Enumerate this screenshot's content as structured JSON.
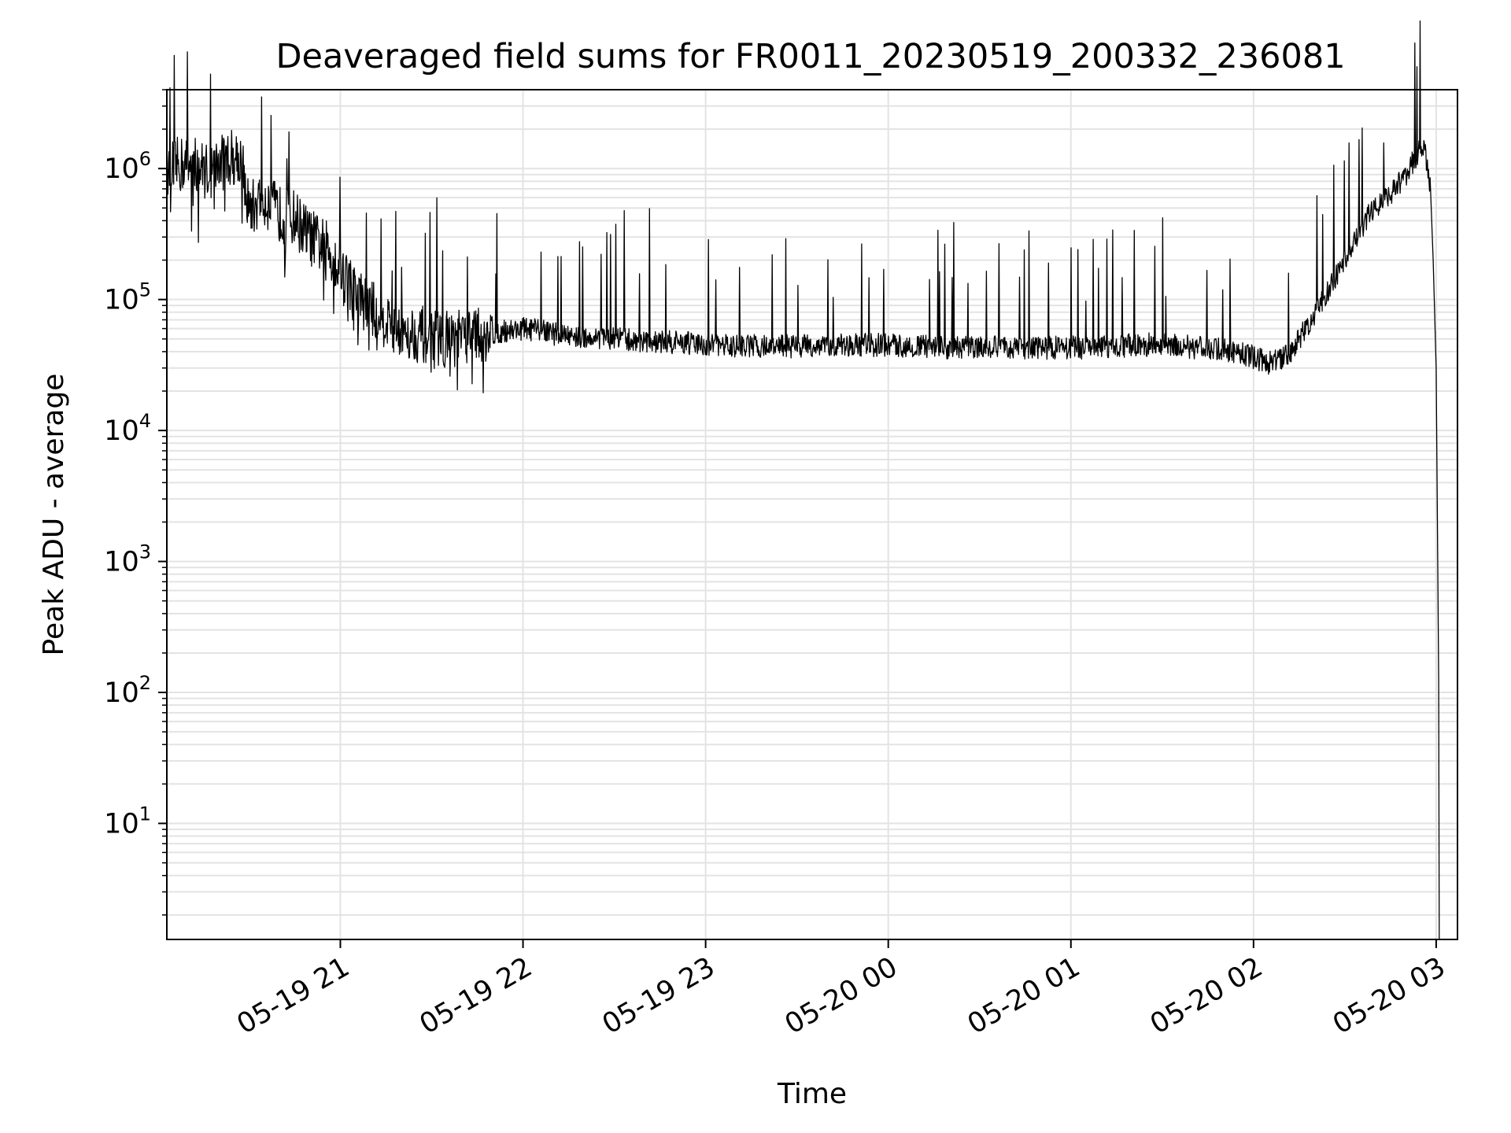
{
  "chart_data": {
    "type": "line",
    "title": "Deaveraged field sums for FR0011_20230519_200332_236081",
    "xlabel": "Time",
    "ylabel": "Peak ADU - average",
    "y_scale": "log",
    "grid": true,
    "line_color": "#000000",
    "grid_color": "#e3e3e3",
    "xlim": [
      "05-19 20:03",
      "05-20 03:07"
    ],
    "ylim": [
      1.3,
      4000000
    ],
    "x_ticks": [
      "05-19 21",
      "05-19 22",
      "05-19 23",
      "05-20 00",
      "05-20 01",
      "05-20 02",
      "05-20 03"
    ],
    "y_ticks": [
      {
        "base": "10",
        "exp": "1",
        "value": 10
      },
      {
        "base": "10",
        "exp": "2",
        "value": 100
      },
      {
        "base": "10",
        "exp": "3",
        "value": 1000
      },
      {
        "base": "10",
        "exp": "4",
        "value": 10000
      },
      {
        "base": "10",
        "exp": "5",
        "value": 100000
      },
      {
        "base": "10",
        "exp": "6",
        "value": 1000000
      }
    ],
    "series": [
      {
        "points": [
          [
            "05-19 20:03",
            1000000
          ],
          [
            "05-19 20:10",
            1100000
          ],
          [
            "05-19 20:17",
            950000
          ],
          [
            "05-19 20:23",
            1200000
          ],
          [
            "05-19 20:27",
            1300000
          ],
          [
            "05-19 20:30",
            480000
          ],
          [
            "05-19 20:35",
            600000
          ],
          [
            "05-19 20:40",
            450000
          ],
          [
            "05-19 20:45",
            420000
          ],
          [
            "05-19 20:50",
            300000
          ],
          [
            "05-19 20:55",
            250000
          ],
          [
            "05-19 21:00",
            180000
          ],
          [
            "05-19 21:05",
            110000
          ],
          [
            "05-19 21:10",
            85000
          ],
          [
            "05-19 21:15",
            70000
          ],
          [
            "05-19 21:20",
            60000
          ],
          [
            "05-19 21:25",
            55000
          ],
          [
            "05-19 21:30",
            52000
          ],
          [
            "05-19 21:35",
            50000
          ],
          [
            "05-19 21:40",
            50000
          ],
          [
            "05-19 21:45",
            52000
          ],
          [
            "05-19 21:50",
            55000
          ],
          [
            "05-19 21:55",
            58000
          ],
          [
            "05-19 22:00",
            60000
          ],
          [
            "05-19 22:10",
            55000
          ],
          [
            "05-19 22:20",
            52000
          ],
          [
            "05-19 22:30",
            50000
          ],
          [
            "05-19 22:40",
            48000
          ],
          [
            "05-19 22:50",
            47000
          ],
          [
            "05-19 23:00",
            45000
          ],
          [
            "05-19 23:15",
            44000
          ],
          [
            "05-19 23:30",
            44000
          ],
          [
            "05-19 23:45",
            45000
          ],
          [
            "05-20 00:00",
            45000
          ],
          [
            "05-20 00:15",
            43000
          ],
          [
            "05-20 00:30",
            43000
          ],
          [
            "05-20 00:45",
            43000
          ],
          [
            "05-20 01:00",
            43000
          ],
          [
            "05-20 01:15",
            44000
          ],
          [
            "05-20 01:30",
            46000
          ],
          [
            "05-20 01:45",
            42000
          ],
          [
            "05-20 01:55",
            40000
          ],
          [
            "05-20 02:05",
            33000
          ],
          [
            "05-20 02:12",
            38000
          ],
          [
            "05-20 02:18",
            65000
          ],
          [
            "05-20 02:25",
            120000
          ],
          [
            "05-20 02:32",
            250000
          ],
          [
            "05-20 02:38",
            450000
          ],
          [
            "05-20 02:44",
            600000
          ],
          [
            "05-20 02:50",
            900000
          ],
          [
            "05-20 02:54",
            1300000
          ],
          [
            "05-20 02:56",
            1500000
          ],
          [
            "05-20 02:58",
            700000
          ],
          [
            "05-20 02:59",
            200000
          ],
          [
            "05-20 03:00",
            30000
          ],
          [
            "05-20 03:00:30",
            1000
          ],
          [
            "05-20 03:00:50",
            120
          ],
          [
            "05-20 03:01",
            1.3
          ]
        ]
      }
    ]
  }
}
